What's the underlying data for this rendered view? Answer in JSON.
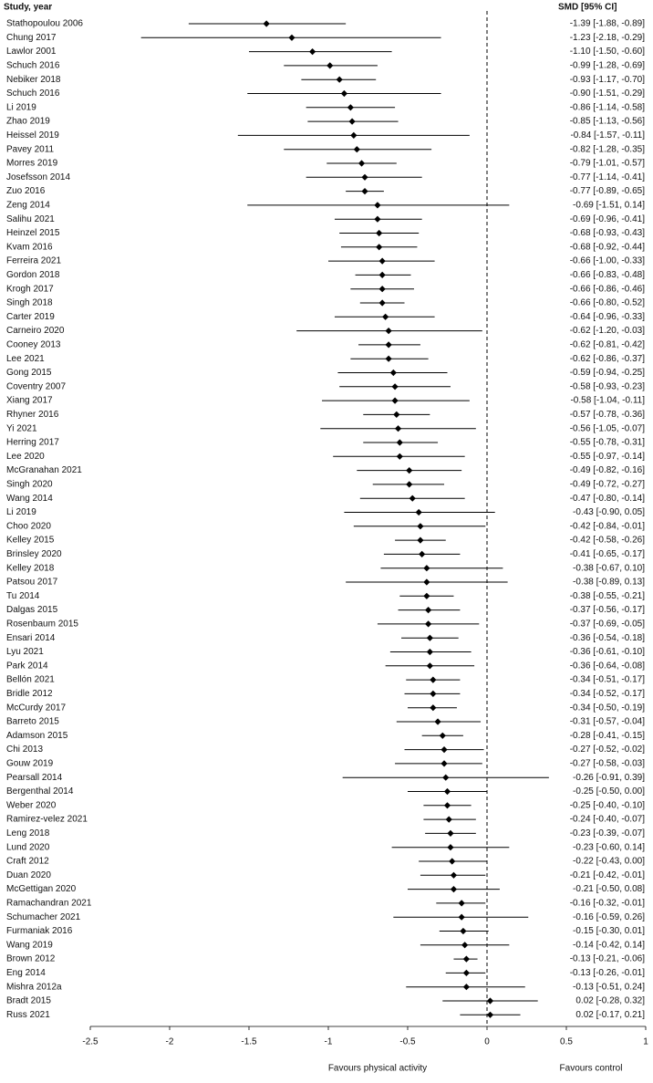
{
  "chart_data": {
    "type": "forest",
    "study_header": "Study, year",
    "value_header": "SMD [95% CI]",
    "x_label_left": "Favours physical activity",
    "x_label_right": "Favours control",
    "color": "#000000",
    "categories": [
      "Stathopoulou 2006",
      "Chung 2017",
      "Lawlor 2001",
      "Schuch 2016",
      "Nebiker 2018",
      "Schuch 2016",
      "Li 2019",
      "Zhao 2019",
      "Heissel 2019",
      "Pavey 2011",
      "Morres 2019",
      "Josefsson 2014",
      "Zuo 2016",
      "Zeng 2014",
      "Salihu 2021",
      "Heinzel 2015",
      "Kvam 2016",
      "Ferreira 2021",
      "Gordon 2018",
      "Krogh 2017",
      "Singh 2018",
      "Carter 2019",
      "Carneiro 2020",
      "Cooney 2013",
      "Lee 2021",
      "Gong 2015",
      "Coventry 2007",
      "Xiang 2017",
      "Rhyner 2016",
      "Yi 2021",
      "Herring 2017",
      "Lee 2020",
      "McGranahan 2021",
      "Singh 2020",
      "Wang 2014",
      "Li 2019",
      "Choo 2020",
      "Kelley 2015",
      "Brinsley 2020",
      "Kelley 2018",
      "Patsou 2017",
      "Tu 2014",
      "Dalgas 2015",
      "Rosenbaum 2015",
      "Ensari 2014",
      "Lyu 2021",
      "Park 2014",
      "Bellón 2021",
      "Bridle 2012",
      "McCurdy 2017",
      "Barreto 2015",
      "Adamson 2015",
      "Chi 2013",
      "Gouw 2019",
      "Pearsall 2014",
      "Bergenthal 2014",
      "Weber 2020",
      "Ramirez-velez 2021",
      "Leng 2018",
      "Lund 2020",
      "Craft 2012",
      "Duan 2020",
      "McGettigan 2020",
      "Ramachandran 2021",
      "Schumacher 2021",
      "Furmaniak 2016",
      "Wang 2019",
      "Brown 2012",
      "Eng 2014",
      "Mishra 2012a",
      "Bradt 2015",
      "Russ 2021"
    ],
    "values": [
      -1.39,
      -1.23,
      -1.1,
      -0.99,
      -0.93,
      -0.9,
      -0.86,
      -0.85,
      -0.84,
      -0.82,
      -0.79,
      -0.77,
      -0.77,
      -0.69,
      -0.69,
      -0.68,
      -0.68,
      -0.66,
      -0.66,
      -0.66,
      -0.66,
      -0.64,
      -0.62,
      -0.62,
      -0.62,
      -0.59,
      -0.58,
      -0.58,
      -0.57,
      -0.56,
      -0.55,
      -0.55,
      -0.49,
      -0.49,
      -0.47,
      -0.43,
      -0.42,
      -0.42,
      -0.41,
      -0.38,
      -0.38,
      -0.38,
      -0.37,
      -0.37,
      -0.36,
      -0.36,
      -0.36,
      -0.34,
      -0.34,
      -0.34,
      -0.31,
      -0.28,
      -0.27,
      -0.27,
      -0.26,
      -0.25,
      -0.25,
      -0.24,
      -0.23,
      -0.23,
      -0.22,
      -0.21,
      -0.21,
      -0.16,
      -0.16,
      -0.15,
      -0.14,
      -0.13,
      -0.13,
      -0.13,
      0.02,
      0.02
    ],
    "lower": [
      -1.88,
      -2.18,
      -1.5,
      -1.28,
      -1.17,
      -1.51,
      -1.14,
      -1.13,
      -1.57,
      -1.28,
      -1.01,
      -1.14,
      -0.89,
      -1.51,
      -0.96,
      -0.93,
      -0.92,
      -1.0,
      -0.83,
      -0.86,
      -0.8,
      -0.96,
      -1.2,
      -0.81,
      -0.86,
      -0.94,
      -0.93,
      -1.04,
      -0.78,
      -1.05,
      -0.78,
      -0.97,
      -0.82,
      -0.72,
      -0.8,
      -0.9,
      -0.84,
      -0.58,
      -0.65,
      -0.67,
      -0.89,
      -0.55,
      -0.56,
      -0.69,
      -0.54,
      -0.61,
      -0.64,
      -0.51,
      -0.52,
      -0.5,
      -0.57,
      -0.41,
      -0.52,
      -0.58,
      -0.91,
      -0.5,
      -0.4,
      -0.4,
      -0.39,
      -0.6,
      -0.43,
      -0.42,
      -0.5,
      -0.32,
      -0.59,
      -0.3,
      -0.42,
      -0.21,
      -0.26,
      -0.51,
      -0.28,
      -0.17
    ],
    "upper": [
      -0.89,
      -0.29,
      -0.6,
      -0.69,
      -0.7,
      -0.29,
      -0.58,
      -0.56,
      -0.11,
      -0.35,
      -0.57,
      -0.41,
      -0.65,
      0.14,
      -0.41,
      -0.43,
      -0.44,
      -0.33,
      -0.48,
      -0.46,
      -0.52,
      -0.33,
      -0.03,
      -0.42,
      -0.37,
      -0.25,
      -0.23,
      -0.11,
      -0.36,
      -0.07,
      -0.31,
      -0.14,
      -0.16,
      -0.27,
      -0.14,
      0.05,
      -0.01,
      -0.26,
      -0.17,
      0.1,
      0.13,
      -0.21,
      -0.17,
      -0.05,
      -0.18,
      -0.1,
      -0.08,
      -0.17,
      -0.17,
      -0.19,
      -0.04,
      -0.15,
      -0.02,
      -0.03,
      0.39,
      0.0,
      -0.1,
      -0.07,
      -0.07,
      0.14,
      0.0,
      -0.01,
      0.08,
      -0.01,
      0.26,
      0.01,
      0.14,
      -0.06,
      -0.01,
      0.24,
      0.32,
      0.21
    ],
    "value_labels": [
      "-1.39 [-1.88, -0.89]",
      "-1.23 [-2.18, -0.29]",
      "-1.10 [-1.50, -0.60]",
      "-0.99 [-1.28, -0.69]",
      "-0.93 [-1.17, -0.70]",
      "-0.90 [-1.51, -0.29]",
      "-0.86 [-1.14, -0.58]",
      "-0.85 [-1.13, -0.56]",
      "-0.84 [-1.57, -0.11]",
      "-0.82 [-1.28, -0.35]",
      "-0.79 [-1.01, -0.57]",
      "-0.77 [-1.14, -0.41]",
      "-0.77 [-0.89, -0.65]",
      "-0.69 [-1.51, 0.14]",
      "-0.69 [-0.96, -0.41]",
      "-0.68 [-0.93, -0.43]",
      "-0.68 [-0.92, -0.44]",
      "-0.66 [-1.00, -0.33]",
      "-0.66 [-0.83, -0.48]",
      "-0.66 [-0.86, -0.46]",
      "-0.66 [-0.80, -0.52]",
      "-0.64 [-0.96, -0.33]",
      "-0.62 [-1.20, -0.03]",
      "-0.62 [-0.81, -0.42]",
      "-0.62 [-0.86, -0.37]",
      "-0.59 [-0.94, -0.25]",
      "-0.58 [-0.93, -0.23]",
      "-0.58 [-1.04, -0.11]",
      "-0.57 [-0.78, -0.36]",
      "-0.56 [-1.05, -0.07]",
      "-0.55 [-0.78, -0.31]",
      "-0.55 [-0.97, -0.14]",
      "-0.49 [-0.82, -0.16]",
      "-0.49 [-0.72, -0.27]",
      "-0.47 [-0.80, -0.14]",
      "-0.43 [-0.90, 0.05]",
      "-0.42 [-0.84, -0.01]",
      "-0.42 [-0.58, -0.26]",
      "-0.41 [-0.65, -0.17]",
      "-0.38 [-0.67, 0.10]",
      "-0.38 [-0.89, 0.13]",
      "-0.38 [-0.55, -0.21]",
      "-0.37 [-0.56, -0.17]",
      "-0.37 [-0.69, -0.05]",
      "-0.36 [-0.54, -0.18]",
      "-0.36 [-0.61, -0.10]",
      "-0.36 [-0.64, -0.08]",
      "-0.34 [-0.51, -0.17]",
      "-0.34 [-0.52, -0.17]",
      "-0.34 [-0.50, -0.19]",
      "-0.31 [-0.57, -0.04]",
      "-0.28 [-0.41, -0.15]",
      "-0.27 [-0.52, -0.02]",
      "-0.27 [-0.58, -0.03]",
      "-0.26 [-0.91, 0.39]",
      "-0.25 [-0.50, 0.00]",
      "-0.25 [-0.40, -0.10]",
      "-0.24 [-0.40, -0.07]",
      "-0.23 [-0.39, -0.07]",
      "-0.23 [-0.60, 0.14]",
      "-0.22 [-0.43, 0.00]",
      "-0.21 [-0.42, -0.01]",
      "-0.21 [-0.50, 0.08]",
      "-0.16 [-0.32, -0.01]",
      "-0.16 [-0.59, 0.26]",
      "-0.15 [-0.30, 0.01]",
      "-0.14 [-0.42, 0.14]",
      "-0.13 [-0.21, -0.06]",
      "-0.13 [-0.26, -0.01]",
      "-0.13 [-0.51, 0.24]",
      "0.02 [-0.28, 0.32]",
      "0.02 [-0.17, 0.21]"
    ],
    "xlim": [
      -2.5,
      1
    ],
    "xticks": [
      -2.5,
      -2,
      -1.5,
      -1,
      -0.5,
      0,
      0.5,
      1
    ],
    "reference_line": 0
  }
}
